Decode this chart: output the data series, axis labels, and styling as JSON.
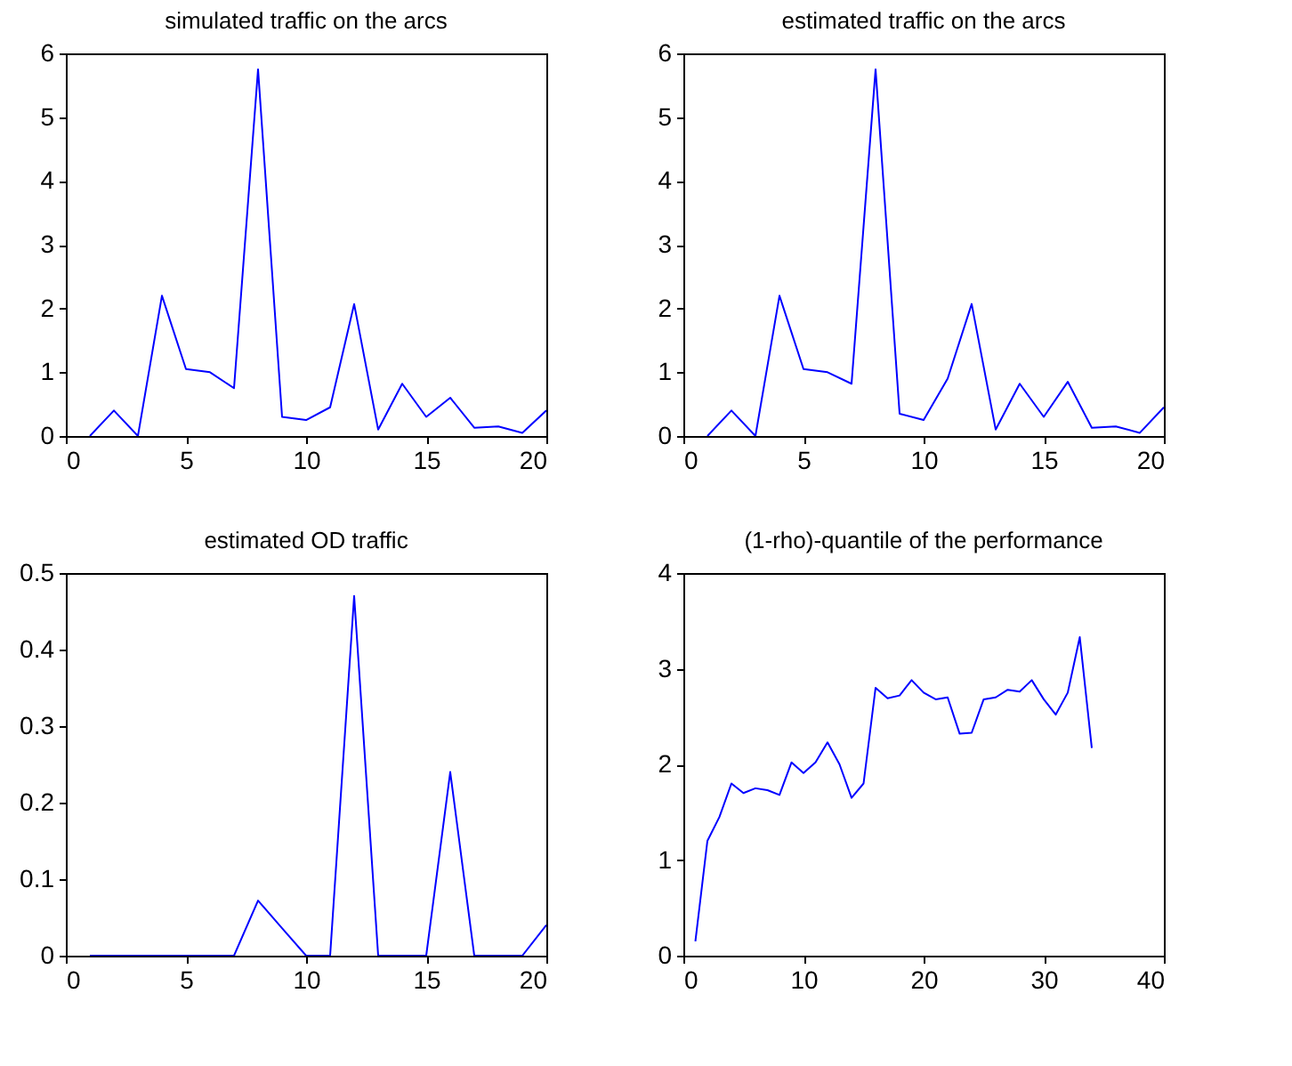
{
  "chart_data": [
    {
      "type": "line",
      "title": "simulated traffic on the arcs",
      "x": [
        1,
        2,
        3,
        4,
        5,
        6,
        7,
        8,
        9,
        10,
        11,
        12,
        13,
        14,
        15,
        16,
        17,
        18,
        19,
        20
      ],
      "series": [
        {
          "color": "#0000ff",
          "values": [
            0,
            0.4,
            0,
            2.2,
            1.05,
            1.0,
            0.75,
            5.75,
            0.3,
            0.25,
            0.45,
            2.07,
            0.1,
            0.82,
            0.3,
            0.6,
            0.13,
            0.15,
            0.05,
            0.4
          ]
        }
      ],
      "xlim": [
        0,
        20
      ],
      "xticks": [
        0,
        5,
        10,
        15,
        20
      ],
      "ylim": [
        0,
        6
      ],
      "yticks": [
        0,
        1,
        2,
        3,
        4,
        5,
        6
      ],
      "grid": false
    },
    {
      "type": "line",
      "title": "estimated traffic on the arcs",
      "x": [
        1,
        2,
        3,
        4,
        5,
        6,
        7,
        8,
        9,
        10,
        11,
        12,
        13,
        14,
        15,
        16,
        17,
        18,
        19,
        20
      ],
      "series": [
        {
          "color": "#0000ff",
          "values": [
            0,
            0.4,
            0,
            2.2,
            1.05,
            1.0,
            0.82,
            5.75,
            0.35,
            0.25,
            0.9,
            2.07,
            0.1,
            0.82,
            0.3,
            0.85,
            0.13,
            0.15,
            0.05,
            0.45
          ]
        }
      ],
      "xlim": [
        0,
        20
      ],
      "xticks": [
        0,
        5,
        10,
        15,
        20
      ],
      "ylim": [
        0,
        6
      ],
      "yticks": [
        0,
        1,
        2,
        3,
        4,
        5,
        6
      ],
      "grid": false
    },
    {
      "type": "line",
      "title": "estimated OD traffic",
      "x": [
        1,
        2,
        3,
        4,
        5,
        6,
        7,
        8,
        9,
        10,
        11,
        12,
        13,
        14,
        15,
        16,
        17,
        18,
        19,
        20
      ],
      "series": [
        {
          "color": "#0000ff",
          "values": [
            0,
            0,
            0,
            0,
            0,
            0,
            0,
            0.072,
            0.036,
            0,
            0,
            0.47,
            0,
            0,
            0,
            0.24,
            0,
            0,
            0,
            0.04
          ]
        }
      ],
      "xlim": [
        0,
        20
      ],
      "xticks": [
        0,
        5,
        10,
        15,
        20
      ],
      "ylim": [
        0,
        0.5
      ],
      "yticks": [
        0,
        0.1,
        0.2,
        0.3,
        0.4,
        0.5
      ],
      "grid": false
    },
    {
      "type": "line",
      "title": "(1-rho)-quantile of the performance",
      "x": [
        1,
        2,
        3,
        4,
        5,
        6,
        7,
        8,
        9,
        10,
        11,
        12,
        13,
        14,
        15,
        16,
        17,
        18,
        19,
        20,
        21,
        22,
        23,
        24,
        25,
        26,
        27,
        28,
        29,
        30,
        31,
        32,
        33,
        34
      ],
      "series": [
        {
          "color": "#0000ff",
          "values": [
            0.15,
            1.2,
            1.45,
            1.8,
            1.7,
            1.75,
            1.73,
            1.68,
            2.02,
            1.91,
            2.02,
            2.23,
            2.0,
            1.65,
            1.8,
            2.8,
            2.69,
            2.72,
            2.88,
            2.75,
            2.68,
            2.7,
            2.32,
            2.33,
            2.68,
            2.7,
            2.78,
            2.76,
            2.88,
            2.68,
            2.52,
            2.75,
            3.33,
            2.17
          ]
        }
      ],
      "xlim": [
        0,
        40
      ],
      "xticks": [
        0,
        10,
        20,
        30,
        40
      ],
      "ylim": [
        0,
        4
      ],
      "yticks": [
        0,
        1,
        2,
        3,
        4
      ],
      "grid": false
    }
  ]
}
